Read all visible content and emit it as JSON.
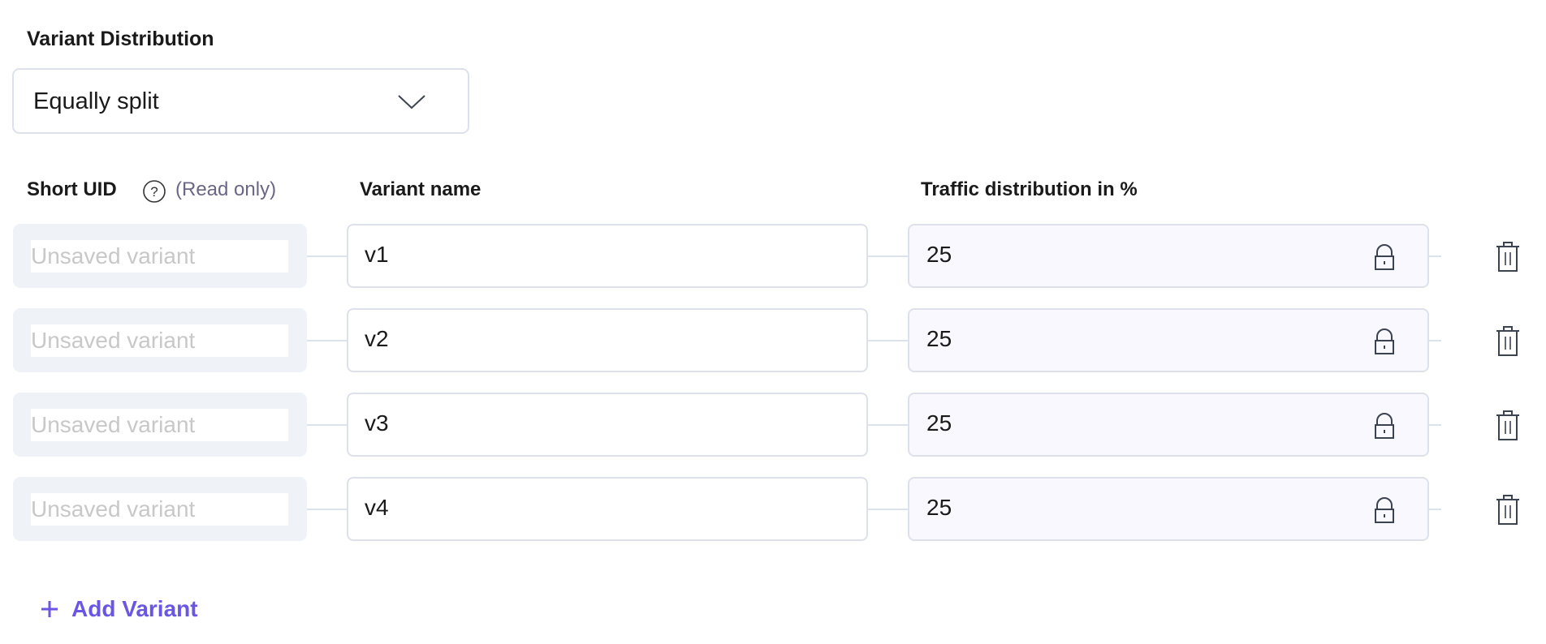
{
  "section_title": "Variant Distribution",
  "distribution": {
    "selected": "Equally split",
    "icon": "chevron-down-icon"
  },
  "headers": {
    "short_uid": "Short UID",
    "short_uid_note": "(Read only)",
    "variant_name": "Variant name",
    "traffic": "Traffic distribution in %"
  },
  "variants": [
    {
      "uid_placeholder": "Unsaved variant",
      "name": "v1",
      "traffic": "25"
    },
    {
      "uid_placeholder": "Unsaved variant",
      "name": "v2",
      "traffic": "25"
    },
    {
      "uid_placeholder": "Unsaved variant",
      "name": "v3",
      "traffic": "25"
    },
    {
      "uid_placeholder": "Unsaved variant",
      "name": "v4",
      "traffic": "25"
    }
  ],
  "add_variant_label": "Add Variant",
  "colors": {
    "accent": "#6b56e3",
    "border": "#dde1ec",
    "readonly_bg": "#eff2f7",
    "locked_bg": "#f8f8fe"
  }
}
